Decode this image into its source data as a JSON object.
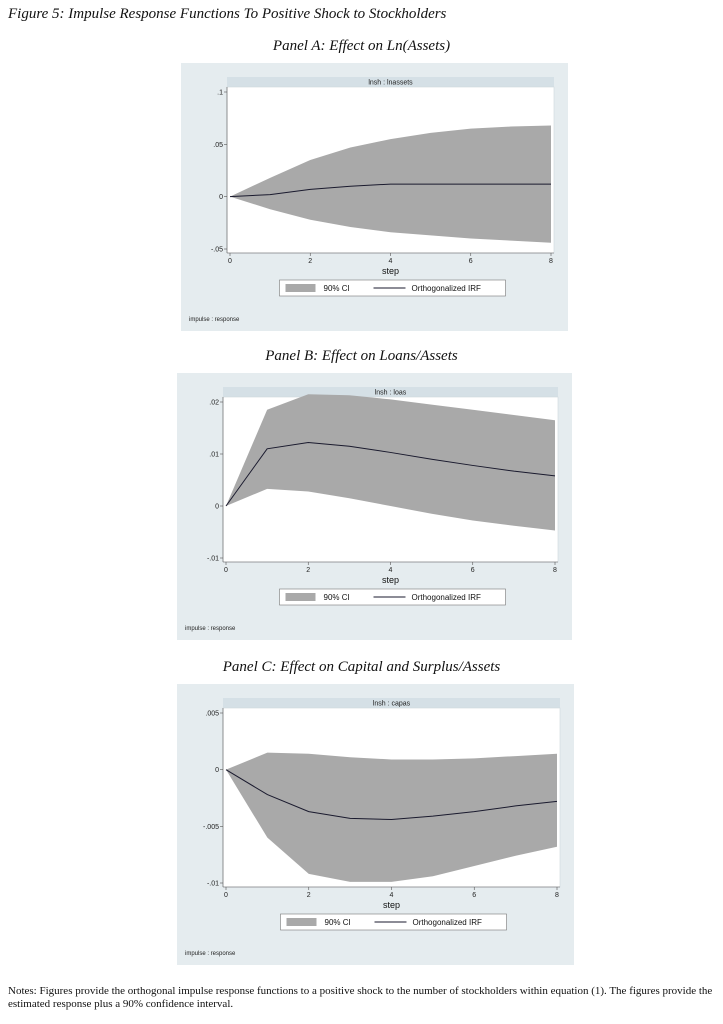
{
  "figure_title": "Figure 5: Impulse Response Functions To Positive Shock to Stockholders",
  "notes": "Notes: Figures provide the orthogonal impulse response functions to a positive shock to the number of stockholders within equation (1). The figures provide the estimated response plus a 90% confidence interval.",
  "colors": {
    "panel_bg": "#e5ecef",
    "strip_bg": "#d5e0e6",
    "ci_fill": "#a9a9a9",
    "irf_line": "#1a1a2e"
  },
  "chart_data": [
    {
      "type": "area",
      "panel_title": "Panel A: Effect on Ln(Assets)",
      "strip": "lnsh : lnassets",
      "xlabel": "step",
      "xticks": [
        "0",
        "2",
        "4",
        "6",
        "8"
      ],
      "yticks": [
        ".1",
        ".05",
        "0",
        "-.05"
      ],
      "ytick_values": [
        0.1,
        0.05,
        0,
        -0.05
      ],
      "xlim": [
        0,
        8
      ],
      "ylim": [
        -0.05,
        0.1
      ],
      "x": [
        0,
        1,
        2,
        3,
        4,
        5,
        6,
        7,
        8
      ],
      "series": [
        {
          "name": "90% CI",
          "lower": [
            0,
            -0.012,
            -0.022,
            -0.029,
            -0.034,
            -0.037,
            -0.04,
            -0.042,
            -0.044
          ],
          "upper": [
            0,
            0.018,
            0.035,
            0.047,
            0.055,
            0.061,
            0.065,
            0.067,
            0.068
          ]
        },
        {
          "name": "Orthogonalized IRF",
          "values": [
            0,
            0.002,
            0.007,
            0.01,
            0.012,
            0.012,
            0.012,
            0.012,
            0.012
          ]
        }
      ],
      "legend_position": "bottom",
      "footnote": "impulse : response"
    },
    {
      "type": "area",
      "panel_title": "Panel B: Effect on Loans/Assets",
      "strip": "lnsh : loas",
      "xlabel": "step",
      "xticks": [
        "0",
        "2",
        "4",
        "6",
        "8"
      ],
      "yticks": [
        ".02",
        ".01",
        "0",
        "-.01"
      ],
      "ytick_values": [
        0.02,
        0.01,
        0,
        -0.01
      ],
      "xlim": [
        0,
        8
      ],
      "ylim": [
        -0.01,
        0.02
      ],
      "x": [
        0,
        1,
        2,
        3,
        4,
        5,
        6,
        7,
        8
      ],
      "series": [
        {
          "name": "90% CI",
          "lower": [
            0,
            0.0033,
            0.0028,
            0.0015,
            0.0,
            -0.0015,
            -0.0028,
            -0.0038,
            -0.0047
          ],
          "upper": [
            0,
            0.0185,
            0.0215,
            0.0213,
            0.0205,
            0.0195,
            0.0185,
            0.0175,
            0.0165
          ]
        },
        {
          "name": "Orthogonalized IRF",
          "values": [
            0,
            0.011,
            0.0122,
            0.0115,
            0.0103,
            0.009,
            0.0078,
            0.0067,
            0.0058
          ]
        }
      ],
      "legend_position": "bottom",
      "footnote": "impulse : response"
    },
    {
      "type": "area",
      "panel_title": "Panel C: Effect on Capital and Surplus/Assets",
      "strip": "lnsh : capas",
      "xlabel": "step",
      "xticks": [
        "0",
        "2",
        "4",
        "6",
        "8"
      ],
      "yticks": [
        ".005",
        "0",
        "-.005",
        "-.01"
      ],
      "ytick_values": [
        0.005,
        0,
        -0.005,
        -0.01
      ],
      "xlim": [
        0,
        8
      ],
      "ylim": [
        -0.01,
        0.005
      ],
      "x": [
        0,
        1,
        2,
        3,
        4,
        5,
        6,
        7,
        8
      ],
      "series": [
        {
          "name": "90% CI",
          "lower": [
            0,
            -0.006,
            -0.0092,
            -0.0099,
            -0.0099,
            -0.0094,
            -0.0085,
            -0.0076,
            -0.0068
          ],
          "upper": [
            0,
            0.0015,
            0.0014,
            0.0011,
            0.0009,
            0.0009,
            0.001,
            0.0012,
            0.0014
          ]
        },
        {
          "name": "Orthogonalized IRF",
          "values": [
            0,
            -0.0022,
            -0.0037,
            -0.0043,
            -0.0044,
            -0.0041,
            -0.0037,
            -0.0032,
            -0.0028
          ]
        }
      ],
      "legend_position": "bottom",
      "footnote": "impulse : response"
    }
  ]
}
